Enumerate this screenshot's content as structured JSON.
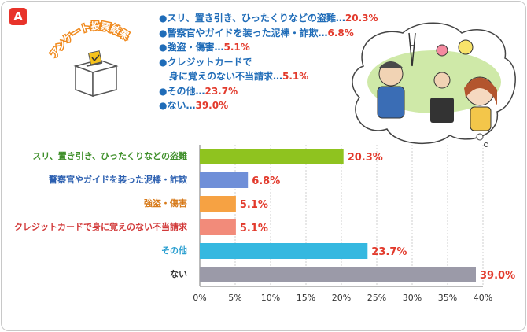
{
  "badge": "A",
  "survey_title": "アンケート投票結果",
  "legend": {
    "items": [
      {
        "text": "●スリ、置き引き、ひったくりなどの盗難…",
        "value": "20.3%"
      },
      {
        "text": "●警察官やガイドを装った泥棒・詐欺…",
        "value": "6.8%"
      },
      {
        "text": "●強盗・傷害…",
        "value": "5.1%"
      },
      {
        "text": "●クレジットカードで",
        "value": ""
      },
      {
        "text": "身に覚えのない不当請求…",
        "value": "5.1%"
      },
      {
        "text": "●その他…",
        "value": "23.7%"
      },
      {
        "text": "●ない…",
        "value": "39.0%"
      }
    ]
  },
  "chart_data": {
    "type": "bar",
    "orientation": "horizontal",
    "categories": [
      "スリ、置き引き、ひったくりなどの盗難",
      "警察官やガイドを装った泥棒・詐欺",
      "強盗・傷害",
      "クレジットカードで身に覚えのない不当請求",
      "その他",
      "ない"
    ],
    "values": [
      20.3,
      6.8,
      5.1,
      5.1,
      23.7,
      39.0
    ],
    "value_labels": [
      "20.3%",
      "6.8%",
      "5.1%",
      "5.1%",
      "23.7%",
      "39.0%"
    ],
    "bar_colors": [
      "#8fc31f",
      "#6f8fd8",
      "#f6a243",
      "#f28b7a",
      "#35b8e0",
      "#9b9aa8"
    ],
    "label_colors": [
      "#3f8f2a",
      "#2b5fb0",
      "#d77a1a",
      "#d23a3a",
      "#2b9fd0",
      "#333333"
    ],
    "xlim": [
      0,
      40
    ],
    "x_ticks": [
      "0%",
      "5%",
      "10%",
      "15%",
      "20%",
      "25%",
      "30%",
      "35%",
      "40%"
    ],
    "grid": true,
    "title": "",
    "xlabel": "",
    "ylabel": ""
  }
}
